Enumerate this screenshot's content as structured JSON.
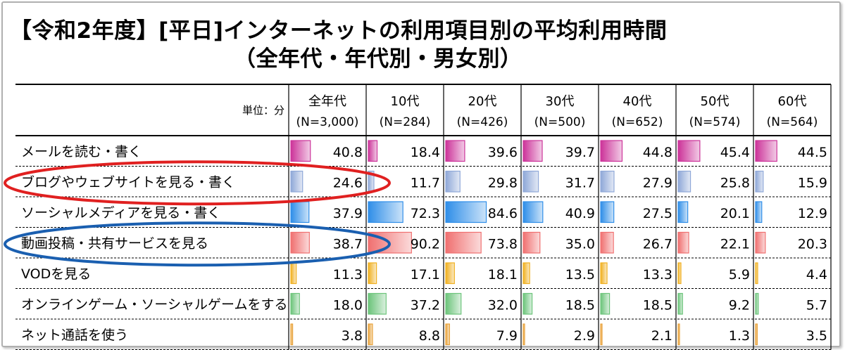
{
  "title": {
    "line1": "【令和2年度】[平日]インターネットの利用項目別の平均利用時間",
    "line2": "（全年代・年代別・男女別）"
  },
  "chart_data": {
    "type": "table",
    "unit_label": "単位：分",
    "columns": [
      {
        "label": "全年代",
        "n": "(N=3,000)"
      },
      {
        "label": "10代",
        "n": "(N=284)"
      },
      {
        "label": "20代",
        "n": "(N=426)"
      },
      {
        "label": "30代",
        "n": "(N=500)"
      },
      {
        "label": "40代",
        "n": "(N=652)"
      },
      {
        "label": "50代",
        "n": "(N=574)"
      },
      {
        "label": "60代",
        "n": "(N=564)"
      }
    ],
    "max_value": 100,
    "rows": [
      {
        "label": "メールを読む・書く",
        "color": "#cc3399",
        "values": [
          40.8,
          18.4,
          39.6,
          39.7,
          44.8,
          45.4,
          44.5
        ]
      },
      {
        "label": "ブログやウェブサイトを見る・書く",
        "color": "#8fa8d8",
        "values": [
          24.6,
          11.7,
          29.8,
          31.7,
          27.9,
          25.8,
          15.9
        ]
      },
      {
        "label": "ソーシャルメディアを見る・書く",
        "color": "#2f8ee8",
        "values": [
          37.9,
          72.3,
          84.6,
          40.9,
          27.5,
          20.1,
          12.9
        ]
      },
      {
        "label": "動画投稿・共有サービスを見る",
        "color": "#f07070",
        "values": [
          38.7,
          90.2,
          73.8,
          35.0,
          26.7,
          22.1,
          20.3
        ]
      },
      {
        "label": "VODを見る",
        "color": "#f0b020",
        "values": [
          11.3,
          17.1,
          18.1,
          13.5,
          13.3,
          5.9,
          4.4
        ]
      },
      {
        "label": "オンラインゲーム・ソーシャルゲームをする",
        "color": "#6cc47a",
        "values": [
          18.0,
          37.2,
          32.0,
          18.5,
          18.5,
          9.2,
          5.7
        ]
      },
      {
        "label": "ネット通話を使う",
        "color": "#e8a23a",
        "values": [
          3.8,
          8.8,
          7.9,
          2.9,
          2.1,
          1.3,
          3.5
        ]
      }
    ],
    "annotations": [
      {
        "row": 1,
        "color": "#e02020",
        "shape": "ellipse"
      },
      {
        "row": 3,
        "color": "#1a5fb0",
        "shape": "ellipse"
      }
    ]
  }
}
